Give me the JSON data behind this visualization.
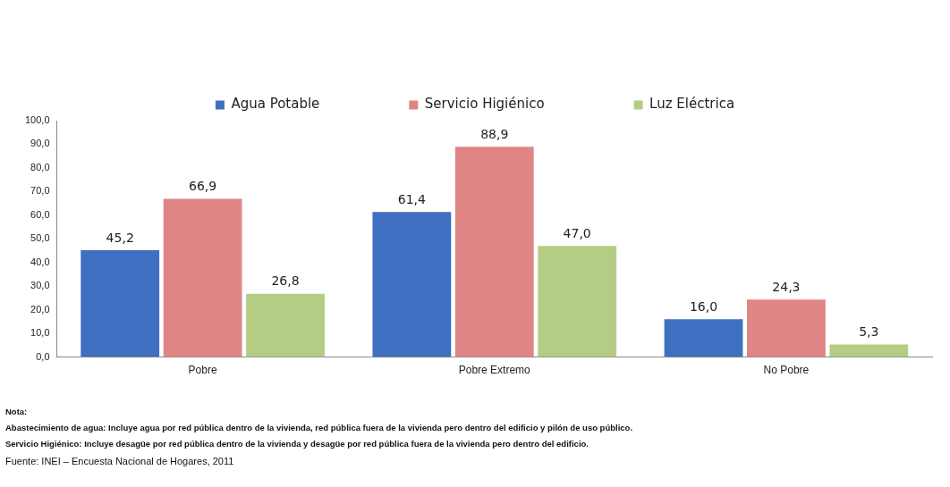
{
  "chart_data": {
    "type": "bar",
    "categories": [
      "Pobre",
      "Pobre Extremo",
      "No Pobre"
    ],
    "series": [
      {
        "name": "Agua Potable",
        "color": "#3f6fc0",
        "values": [
          45.2,
          61.4,
          16.0
        ],
        "value_labels": [
          "45,2",
          "61,4",
          "16,0"
        ]
      },
      {
        "name": "Servicio Higiénico",
        "color": "#e08585",
        "values": [
          66.9,
          88.9,
          24.3
        ],
        "value_labels": [
          "66,9",
          "88,9",
          "24,3"
        ]
      },
      {
        "name": "Luz Eléctrica",
        "color": "#b5cc85",
        "values": [
          26.8,
          47.0,
          5.3
        ],
        "value_labels": [
          "26,8",
          "47,0",
          "5,3"
        ]
      }
    ],
    "ylim": [
      0,
      100
    ],
    "yticks": [
      {
        "value": 0,
        "label": "0,0"
      },
      {
        "value": 10,
        "label": "10,0"
      },
      {
        "value": 20,
        "label": "20,0"
      },
      {
        "value": 30,
        "label": "30,0"
      },
      {
        "value": 40,
        "label": "40,0"
      },
      {
        "value": 50,
        "label": "50,0"
      },
      {
        "value": 60,
        "label": "60,0"
      },
      {
        "value": 70,
        "label": "70,0"
      },
      {
        "value": 80,
        "label": "80,0"
      },
      {
        "value": 90,
        "label": "90,0"
      },
      {
        "value": 100,
        "label": "100,0"
      }
    ],
    "grid": false,
    "legend": "top",
    "annotations": [
      "Nota:",
      "Abastecimiento de agua: Incluye agua por red pública dentro de la vivienda, red pública fuera de la vivienda pero dentro del edificio y pilón de uso público.",
      "Servicio Higiénico: Incluye desagüe por red pública dentro de la vivienda y desagüe por  red pública fuera de la vivienda pero dentro del edificio.",
      "Fuente: INEI – Encuesta Nacional de Hogares, 2011"
    ]
  }
}
